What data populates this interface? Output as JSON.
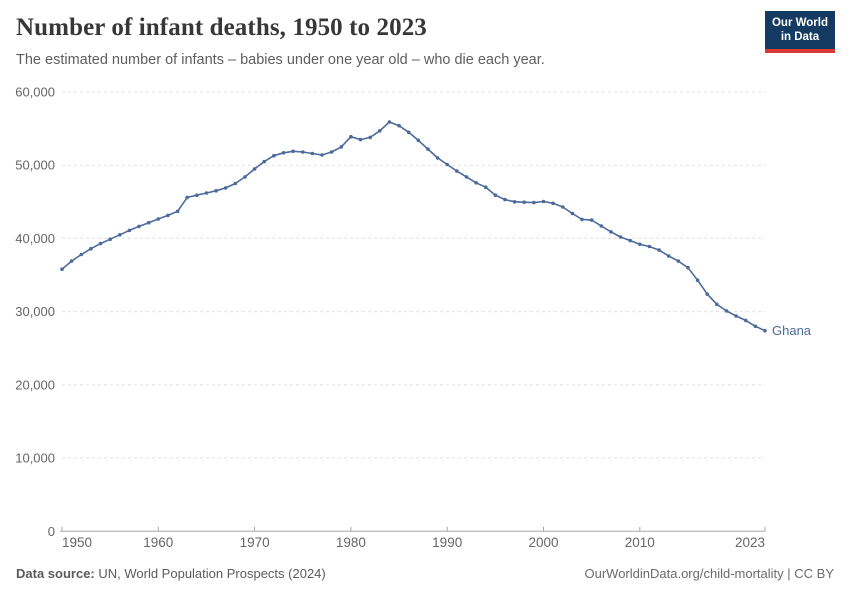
{
  "header": {
    "title": "Number of infant deaths, 1950 to 2023",
    "subtitle": "The estimated number of infants – babies under one year old – who die each year."
  },
  "logo": {
    "line1": "Our World",
    "line2": "in Data"
  },
  "footer": {
    "source_label": "Data source:",
    "source_text": " UN, World Population Prospects (2024)",
    "credit": "OurWorldinData.org/child-mortality | CC BY"
  },
  "colors": {
    "line": "#4c6a9c",
    "grid": "#e0e0e0",
    "axis": "#a8a8a8",
    "tick_label": "#666666",
    "logo_bg": "#153a62",
    "logo_bar": "#d93a34"
  },
  "chart_data": {
    "type": "line",
    "title": "Number of infant deaths, 1950 to 2023",
    "subtitle": "The estimated number of infants – babies under one year old – who die each year.",
    "xlabel": "",
    "ylabel": "",
    "xlim": [
      1950,
      2023
    ],
    "ylim": [
      0,
      60000
    ],
    "xticks": [
      1950,
      1960,
      1970,
      1980,
      1990,
      2000,
      2010,
      2023
    ],
    "yticks": [
      0,
      10000,
      20000,
      30000,
      40000,
      50000,
      60000
    ],
    "grid": "horizontal-dashed",
    "legend": "end-of-line-label",
    "end_label": "Ghana",
    "series": [
      {
        "name": "Ghana",
        "color": "#4c6a9c",
        "points": [
          [
            1950,
            35800
          ],
          [
            1951,
            36900
          ],
          [
            1952,
            37800
          ],
          [
            1953,
            38600
          ],
          [
            1954,
            39300
          ],
          [
            1955,
            39900
          ],
          [
            1956,
            40500
          ],
          [
            1957,
            41100
          ],
          [
            1958,
            41650
          ],
          [
            1959,
            42150
          ],
          [
            1960,
            42650
          ],
          [
            1961,
            43150
          ],
          [
            1962,
            43700
          ],
          [
            1963,
            45600
          ],
          [
            1964,
            45900
          ],
          [
            1965,
            46200
          ],
          [
            1966,
            46500
          ],
          [
            1967,
            46900
          ],
          [
            1968,
            47500
          ],
          [
            1969,
            48400
          ],
          [
            1970,
            49500
          ],
          [
            1971,
            50500
          ],
          [
            1972,
            51300
          ],
          [
            1973,
            51700
          ],
          [
            1974,
            51900
          ],
          [
            1975,
            51800
          ],
          [
            1976,
            51600
          ],
          [
            1977,
            51400
          ],
          [
            1978,
            51800
          ],
          [
            1979,
            52500
          ],
          [
            1980,
            53900
          ],
          [
            1981,
            53500
          ],
          [
            1982,
            53800
          ],
          [
            1983,
            54700
          ],
          [
            1984,
            55900
          ],
          [
            1985,
            55400
          ],
          [
            1986,
            54500
          ],
          [
            1987,
            53400
          ],
          [
            1988,
            52200
          ],
          [
            1989,
            51000
          ],
          [
            1990,
            50100
          ],
          [
            1991,
            49200
          ],
          [
            1992,
            48400
          ],
          [
            1993,
            47600
          ],
          [
            1994,
            47000
          ],
          [
            1995,
            45900
          ],
          [
            1996,
            45300
          ],
          [
            1997,
            45000
          ],
          [
            1998,
            44950
          ],
          [
            1999,
            44900
          ],
          [
            2000,
            45050
          ],
          [
            2001,
            44800
          ],
          [
            2002,
            44300
          ],
          [
            2003,
            43400
          ],
          [
            2004,
            42600
          ],
          [
            2005,
            42500
          ],
          [
            2006,
            41700
          ],
          [
            2007,
            40900
          ],
          [
            2008,
            40200
          ],
          [
            2009,
            39700
          ],
          [
            2010,
            39200
          ],
          [
            2011,
            38900
          ],
          [
            2012,
            38400
          ],
          [
            2013,
            37600
          ],
          [
            2014,
            36900
          ],
          [
            2015,
            36000
          ],
          [
            2016,
            34300
          ],
          [
            2017,
            32400
          ],
          [
            2018,
            31000
          ],
          [
            2019,
            30100
          ],
          [
            2020,
            29400
          ],
          [
            2021,
            28800
          ],
          [
            2022,
            28000
          ],
          [
            2023,
            27400
          ]
        ]
      }
    ]
  }
}
